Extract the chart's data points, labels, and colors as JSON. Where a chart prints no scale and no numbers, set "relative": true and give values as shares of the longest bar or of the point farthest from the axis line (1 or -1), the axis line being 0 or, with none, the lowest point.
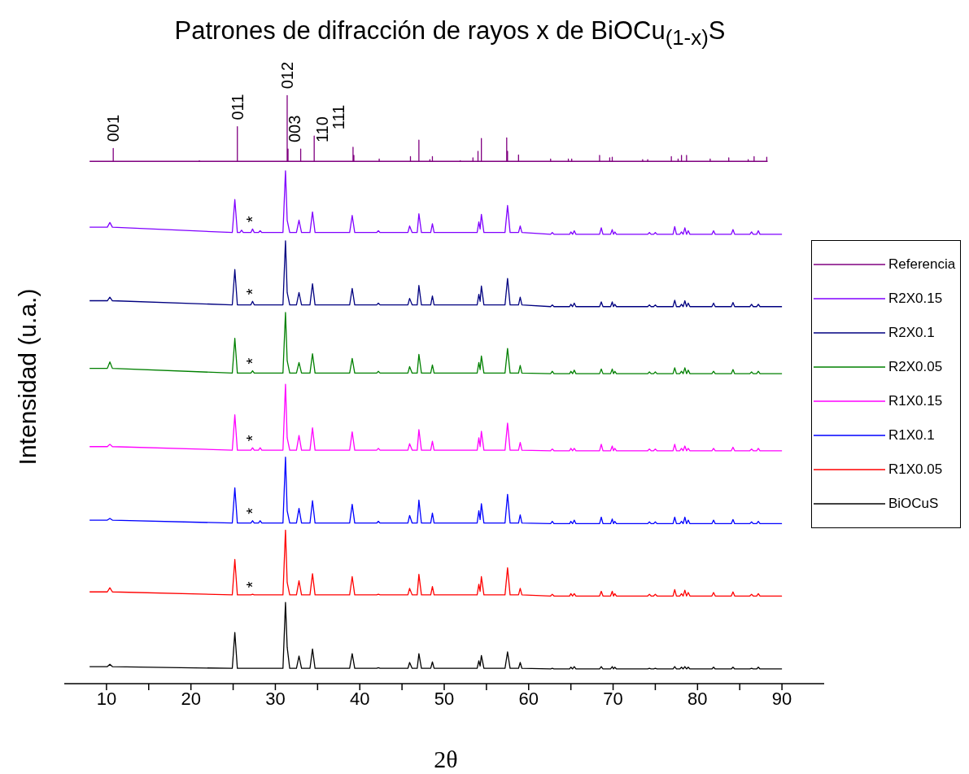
{
  "chart_data": {
    "type": "line",
    "title": "Patrones de difracción de rayos x de BiOCu$_{(1-x)}$S",
    "xlabel": "2θ",
    "ylabel": "Intensidad (u.a.)",
    "relative": true,
    "marker": "none",
    "legend": "right",
    "xlim": [
      5,
      95
    ],
    "xticks": [
      10,
      {
        "value": 15,
        "label": null
      },
      20,
      {
        "value": 25,
        "label": null
      },
      30,
      {
        "value": 35,
        "label": null
      },
      40,
      {
        "value": 45,
        "label": null
      },
      50,
      {
        "value": 55,
        "label": null
      },
      60,
      {
        "value": 65,
        "label": null
      },
      70,
      {
        "value": 75,
        "label": null
      },
      80,
      {
        "value": 85,
        "label": null
      },
      90
    ],
    "x": [
      8,
      10.1,
      10.4,
      10.7,
      24.9,
      25.2,
      25.5,
      25.8,
      26.0,
      26.2,
      27.1,
      27.3,
      27.5,
      28.0,
      28.2,
      28.4,
      30.9,
      31.2,
      31.4,
      31.7,
      32.5,
      32.8,
      33.1,
      34.1,
      34.4,
      34.7,
      38.8,
      39.1,
      39.4,
      42.0,
      42.2,
      42.4,
      45.7,
      45.9,
      46.2,
      46.8,
      47.0,
      47.3,
      48.4,
      48.6,
      48.8,
      53.9,
      54.1,
      54.25,
      54.4,
      54.7,
      57.2,
      57.5,
      57.8,
      58.8,
      59.0,
      59.2,
      62.6,
      62.8,
      63.0,
      64.85,
      65.0,
      65.2,
      65.4,
      65.6,
      68.4,
      68.6,
      68.8,
      69.7,
      69.9,
      70.05,
      70.2,
      70.4,
      74.1,
      74.3,
      74.5,
      74.8,
      75.0,
      75.2,
      77.1,
      77.3,
      77.5,
      77.9,
      78.1,
      78.3,
      78.5,
      78.7,
      78.9,
      79.1,
      81.7,
      81.9,
      82.1,
      84.0,
      84.2,
      84.4,
      86.2,
      86.4,
      86.6,
      87.0,
      87.2,
      87.4,
      90
    ],
    "series": [
      {
        "name": "Referencia",
        "color": "#800080",
        "x": [
          8,
          10.8,
          10.8,
          10.8,
          21.0,
          21.0,
          21.0,
          25.5,
          25.5,
          25.5,
          31.4,
          31.4,
          31.4,
          31.5,
          31.5,
          31.5,
          33.0,
          33.0,
          33.0,
          34.6,
          34.6,
          34.6,
          39.2,
          39.2,
          39.2,
          39.3,
          39.3,
          39.3,
          42.3,
          42.3,
          42.3,
          46.0,
          46.0,
          46.0,
          47.0,
          47.0,
          47.0,
          48.3,
          48.3,
          48.3,
          48.6,
          48.6,
          48.6,
          51.9,
          51.9,
          51.9,
          53.4,
          53.4,
          53.4,
          54.0,
          54.0,
          54.0,
          54.4,
          54.4,
          54.4,
          57.4,
          57.4,
          57.4,
          57.5,
          57.5,
          57.5,
          58.8,
          58.8,
          58.8,
          62.6,
          62.6,
          62.6,
          64.7,
          64.7,
          64.7,
          65.1,
          65.1,
          65.1,
          68.4,
          68.4,
          68.4,
          69.6,
          69.6,
          69.6,
          69.9,
          69.9,
          69.9,
          73.5,
          73.5,
          73.5,
          74.1,
          74.1,
          74.1,
          76.9,
          76.9,
          76.9,
          77.7,
          77.7,
          77.7,
          78.1,
          78.1,
          78.1,
          78.7,
          78.7,
          78.7,
          81.5,
          81.5,
          81.5,
          83.7,
          83.7,
          83.7,
          86.0,
          86.0,
          86.0,
          86.7,
          86.7,
          86.7,
          88.2,
          88.2,
          88.2,
          88.3
        ],
        "values": [
          0.888,
          0.888,
          0.91,
          0.888,
          0.888,
          0.889,
          0.888,
          0.888,
          0.947,
          0.888,
          0.888,
          1,
          0.888,
          0.888,
          0.909,
          0.888,
          0.888,
          0.909,
          0.888,
          0.888,
          0.931,
          0.888,
          0.888,
          0.912,
          0.888,
          0.888,
          0.898,
          0.888,
          0.888,
          0.892,
          0.888,
          0.888,
          0.896,
          0.888,
          0.888,
          0.924,
          0.888,
          0.888,
          0.891,
          0.888,
          0.888,
          0.896,
          0.888,
          0.888,
          0.889,
          0.888,
          0.888,
          0.894,
          0.888,
          0.888,
          0.905,
          0.888,
          0.888,
          0.927,
          0.888,
          0.888,
          0.928,
          0.888,
          0.888,
          0.905,
          0.888,
          0.888,
          0.899,
          0.888,
          0.888,
          0.892,
          0.888,
          0.888,
          0.892,
          0.888,
          0.888,
          0.892,
          0.888,
          0.888,
          0.898,
          0.888,
          0.888,
          0.894,
          0.888,
          0.888,
          0.895,
          0.888,
          0.888,
          0.891,
          0.888,
          0.888,
          0.891,
          0.888,
          0.888,
          0.896,
          0.888,
          0.888,
          0.892,
          0.888,
          0.888,
          0.898,
          0.888,
          0.888,
          0.898,
          0.888,
          0.888,
          0.892,
          0.888,
          0.888,
          0.894,
          0.888,
          0.888,
          0.891,
          0.888,
          0.888,
          0.896,
          0.888,
          0.888,
          0.895,
          0.888,
          0.888
        ]
      },
      {
        "name": "R2X0.15",
        "color": "#8000ff",
        "values": [
          0.776,
          0.776,
          0.784,
          0.776,
          0.767,
          0.823,
          0.767,
          0.767,
          0.771,
          0.767,
          0.767,
          0.773,
          0.767,
          0.767,
          0.77,
          0.767,
          0.767,
          0.872,
          0.788,
          0.767,
          0.767,
          0.788,
          0.767,
          0.767,
          0.802,
          0.767,
          0.767,
          0.796,
          0.767,
          0.767,
          0.77,
          0.767,
          0.767,
          0.778,
          0.767,
          0.767,
          0.799,
          0.767,
          0.767,
          0.782,
          0.767,
          0.767,
          0.785,
          0.773,
          0.798,
          0.767,
          0.767,
          0.813,
          0.767,
          0.767,
          0.778,
          0.767,
          0.764,
          0.767,
          0.764,
          0.764,
          0.768,
          0.764,
          0.77,
          0.764,
          0.764,
          0.775,
          0.764,
          0.764,
          0.772,
          0.764,
          0.768,
          0.764,
          0.764,
          0.767,
          0.764,
          0.764,
          0.767,
          0.764,
          0.764,
          0.777,
          0.764,
          0.764,
          0.768,
          0.764,
          0.775,
          0.764,
          0.77,
          0.764,
          0.764,
          0.77,
          0.764,
          0.764,
          0.772,
          0.764,
          0.764,
          0.768,
          0.764,
          0.764,
          0.77,
          0.764,
          0.764
        ]
      },
      {
        "name": "R2X0.1",
        "color": "#000080",
        "values": [
          0.651,
          0.651,
          0.657,
          0.651,
          0.644,
          0.704,
          0.644,
          0.644,
          0.644,
          0.644,
          0.644,
          0.65,
          0.644,
          0.644,
          0.644,
          0.644,
          0.644,
          0.753,
          0.665,
          0.644,
          0.644,
          0.665,
          0.644,
          0.644,
          0.68,
          0.644,
          0.644,
          0.672,
          0.644,
          0.644,
          0.647,
          0.644,
          0.644,
          0.655,
          0.644,
          0.644,
          0.677,
          0.644,
          0.644,
          0.659,
          0.644,
          0.644,
          0.662,
          0.65,
          0.676,
          0.644,
          0.644,
          0.689,
          0.644,
          0.644,
          0.657,
          0.644,
          0.641,
          0.644,
          0.641,
          0.641,
          0.645,
          0.641,
          0.647,
          0.641,
          0.641,
          0.649,
          0.641,
          0.641,
          0.649,
          0.641,
          0.645,
          0.641,
          0.641,
          0.644,
          0.641,
          0.641,
          0.644,
          0.641,
          0.641,
          0.652,
          0.641,
          0.641,
          0.645,
          0.641,
          0.651,
          0.641,
          0.647,
          0.641,
          0.641,
          0.647,
          0.641,
          0.641,
          0.648,
          0.641,
          0.641,
          0.645,
          0.641,
          0.641,
          0.645,
          0.641,
          0.641
        ]
      },
      {
        "name": "R2X0.05",
        "color": "#008000",
        "values": [
          0.536,
          0.536,
          0.547,
          0.536,
          0.528,
          0.587,
          0.528,
          0.528,
          0.528,
          0.528,
          0.528,
          0.532,
          0.528,
          0.528,
          0.528,
          0.528,
          0.528,
          0.631,
          0.549,
          0.528,
          0.528,
          0.546,
          0.528,
          0.528,
          0.561,
          0.528,
          0.528,
          0.553,
          0.528,
          0.528,
          0.531,
          0.528,
          0.528,
          0.539,
          0.528,
          0.528,
          0.56,
          0.528,
          0.528,
          0.542,
          0.528,
          0.528,
          0.546,
          0.534,
          0.557,
          0.528,
          0.528,
          0.57,
          0.528,
          0.528,
          0.541,
          0.528,
          0.527,
          0.531,
          0.527,
          0.527,
          0.531,
          0.527,
          0.533,
          0.527,
          0.527,
          0.535,
          0.527,
          0.527,
          0.535,
          0.527,
          0.531,
          0.527,
          0.527,
          0.53,
          0.527,
          0.527,
          0.53,
          0.527,
          0.527,
          0.537,
          0.527,
          0.527,
          0.531,
          0.527,
          0.537,
          0.527,
          0.533,
          0.527,
          0.527,
          0.531,
          0.527,
          0.527,
          0.534,
          0.527,
          0.527,
          0.53,
          0.527,
          0.527,
          0.531,
          0.527,
          0.527
        ]
      },
      {
        "name": "R1X0.15",
        "color": "#ff00ff",
        "values": [
          0.403,
          0.403,
          0.407,
          0.403,
          0.397,
          0.457,
          0.397,
          0.397,
          0.397,
          0.397,
          0.397,
          0.401,
          0.397,
          0.397,
          0.401,
          0.397,
          0.397,
          0.509,
          0.418,
          0.397,
          0.397,
          0.422,
          0.397,
          0.397,
          0.435,
          0.397,
          0.397,
          0.428,
          0.397,
          0.397,
          0.4,
          0.397,
          0.397,
          0.408,
          0.397,
          0.397,
          0.432,
          0.397,
          0.397,
          0.412,
          0.397,
          0.397,
          0.418,
          0.403,
          0.429,
          0.397,
          0.397,
          0.443,
          0.397,
          0.397,
          0.41,
          0.397,
          0.396,
          0.399,
          0.396,
          0.396,
          0.4,
          0.396,
          0.4,
          0.396,
          0.396,
          0.407,
          0.396,
          0.396,
          0.404,
          0.396,
          0.4,
          0.396,
          0.396,
          0.399,
          0.396,
          0.396,
          0.399,
          0.396,
          0.396,
          0.407,
          0.396,
          0.396,
          0.4,
          0.396,
          0.404,
          0.396,
          0.4,
          0.396,
          0.396,
          0.4,
          0.396,
          0.396,
          0.402,
          0.396,
          0.396,
          0.399,
          0.396,
          0.396,
          0.4,
          0.396,
          0.396
        ]
      },
      {
        "name": "R1X0.1",
        "color": "#0000ff",
        "values": [
          0.278,
          0.278,
          0.281,
          0.278,
          0.273,
          0.333,
          0.273,
          0.273,
          0.273,
          0.273,
          0.273,
          0.277,
          0.273,
          0.273,
          0.277,
          0.273,
          0.273,
          0.385,
          0.294,
          0.273,
          0.273,
          0.298,
          0.273,
          0.273,
          0.311,
          0.273,
          0.273,
          0.305,
          0.273,
          0.273,
          0.276,
          0.273,
          0.273,
          0.286,
          0.273,
          0.273,
          0.312,
          0.273,
          0.273,
          0.29,
          0.273,
          0.273,
          0.294,
          0.279,
          0.306,
          0.273,
          0.273,
          0.322,
          0.273,
          0.273,
          0.287,
          0.273,
          0.272,
          0.276,
          0.272,
          0.272,
          0.276,
          0.272,
          0.278,
          0.272,
          0.272,
          0.283,
          0.272,
          0.272,
          0.28,
          0.272,
          0.276,
          0.272,
          0.272,
          0.275,
          0.272,
          0.272,
          0.275,
          0.272,
          0.272,
          0.283,
          0.272,
          0.272,
          0.276,
          0.272,
          0.283,
          0.272,
          0.278,
          0.272,
          0.272,
          0.278,
          0.272,
          0.272,
          0.279,
          0.272,
          0.272,
          0.275,
          0.272,
          0.272,
          0.276,
          0.272,
          0.272
        ]
      },
      {
        "name": "R1X0.05",
        "color": "#ff0000",
        "values": [
          0.156,
          0.156,
          0.163,
          0.156,
          0.151,
          0.211,
          0.151,
          0.151,
          0.151,
          0.151,
          0.151,
          0.152,
          0.151,
          0.151,
          0.151,
          0.151,
          0.151,
          0.261,
          0.172,
          0.151,
          0.151,
          0.175,
          0.151,
          0.151,
          0.187,
          0.151,
          0.151,
          0.182,
          0.151,
          0.151,
          0.152,
          0.151,
          0.151,
          0.162,
          0.151,
          0.151,
          0.186,
          0.151,
          0.151,
          0.165,
          0.151,
          0.151,
          0.169,
          0.157,
          0.182,
          0.151,
          0.151,
          0.197,
          0.151,
          0.151,
          0.162,
          0.151,
          0.149,
          0.152,
          0.149,
          0.149,
          0.153,
          0.149,
          0.153,
          0.149,
          0.149,
          0.157,
          0.149,
          0.149,
          0.157,
          0.149,
          0.153,
          0.149,
          0.149,
          0.152,
          0.149,
          0.149,
          0.152,
          0.149,
          0.149,
          0.16,
          0.149,
          0.149,
          0.153,
          0.149,
          0.159,
          0.149,
          0.155,
          0.149,
          0.149,
          0.155,
          0.149,
          0.149,
          0.156,
          0.149,
          0.149,
          0.152,
          0.149,
          0.149,
          0.153,
          0.149,
          0.149
        ]
      },
      {
        "name": "BiOCuS",
        "color": "#000000",
        "values": [
          0.029,
          0.029,
          0.033,
          0.029,
          0.026,
          0.087,
          0.026,
          0.026,
          0.026,
          0.026,
          0.026,
          0.026,
          0.026,
          0.026,
          0.026,
          0.026,
          0.026,
          0.138,
          0.062,
          0.026,
          0.026,
          0.047,
          0.026,
          0.026,
          0.059,
          0.026,
          0.026,
          0.051,
          0.026,
          0.026,
          0.027,
          0.026,
          0.026,
          0.036,
          0.026,
          0.026,
          0.051,
          0.026,
          0.026,
          0.037,
          0.026,
          0.026,
          0.039,
          0.03,
          0.048,
          0.026,
          0.026,
          0.054,
          0.026,
          0.026,
          0.036,
          0.026,
          0.025,
          0.026,
          0.025,
          0.025,
          0.028,
          0.025,
          0.029,
          0.025,
          0.025,
          0.029,
          0.025,
          0.025,
          0.029,
          0.025,
          0.028,
          0.025,
          0.025,
          0.026,
          0.025,
          0.025,
          0.026,
          0.025,
          0.025,
          0.029,
          0.025,
          0.025,
          0.028,
          0.025,
          0.029,
          0.025,
          0.028,
          0.025,
          0.025,
          0.028,
          0.025,
          0.025,
          0.028,
          0.025,
          0.025,
          0.026,
          0.025,
          0.025,
          0.028,
          0.025,
          0.025
        ]
      }
    ],
    "annotations": [
      {
        "text": "001",
        "x": 10.8,
        "y": 0.91
      },
      {
        "text": "011",
        "x": 25.5,
        "y": 0.947
      },
      {
        "text": "012",
        "x": 31.4,
        "y": 1
      },
      {
        "text": "003",
        "x": 31.5,
        "y": 0.909
      },
      {
        "text": "110",
        "x": 33.0,
        "y": 0.909
      },
      {
        "text": "111",
        "x": 34.6,
        "y": 0.931
      },
      {
        "text": "*",
        "x": 27.3,
        "y": 0.773
      },
      {
        "text": "*",
        "x": 27.3,
        "y": 0.65
      },
      {
        "text": "*",
        "x": 27.3,
        "y": 0.532
      },
      {
        "text": "*",
        "x": 27.3,
        "y": 0.401
      },
      {
        "text": "*",
        "x": 27.3,
        "y": 0.277
      },
      {
        "text": "*",
        "x": 27.3,
        "y": 0.152
      }
    ]
  }
}
